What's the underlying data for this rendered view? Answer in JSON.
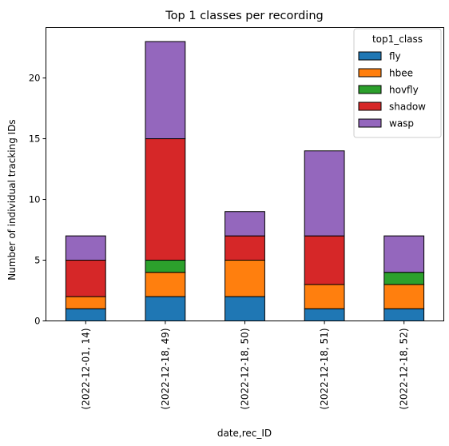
{
  "chart_data": {
    "type": "bar",
    "stacked": true,
    "title": "Top 1 classes per recording",
    "xlabel": "date,rec_ID",
    "ylabel": "Number of individual tracking IDs",
    "categories": [
      "(2022-12-01, 14)",
      "(2022-12-18, 49)",
      "(2022-12-18, 50)",
      "(2022-12-18, 51)",
      "(2022-12-18, 52)"
    ],
    "ylim": [
      0,
      24.15
    ],
    "yticks": [
      0,
      5,
      10,
      15,
      20
    ],
    "series": [
      {
        "name": "fly",
        "color": "#1f77b4",
        "values": [
          1,
          2,
          2,
          1,
          1
        ]
      },
      {
        "name": "hbee",
        "color": "#ff7f0e",
        "values": [
          1,
          2,
          3,
          2,
          2
        ]
      },
      {
        "name": "hovfly",
        "color": "#2ca02c",
        "values": [
          0,
          1,
          0,
          0,
          1
        ]
      },
      {
        "name": "shadow",
        "color": "#d62728",
        "values": [
          3,
          10,
          2,
          4,
          0
        ]
      },
      {
        "name": "wasp",
        "color": "#9467bd",
        "values": [
          2,
          8,
          2,
          7,
          3
        ]
      }
    ],
    "legend": {
      "title": "top1_class",
      "placement": "top-right"
    },
    "grid": false
  }
}
